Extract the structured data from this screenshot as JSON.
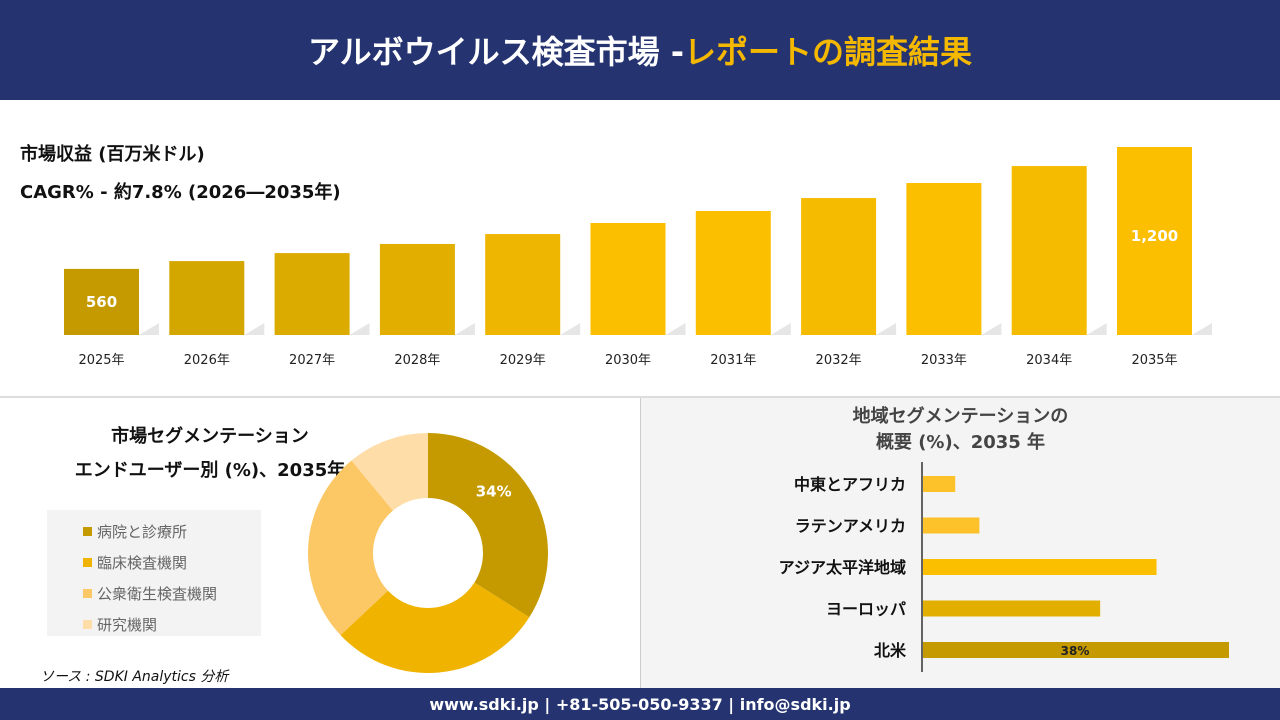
{
  "header": {
    "title_main": "アルボウイルス検査市場 -",
    "title_highlight": "レポートの調査結果"
  },
  "revenue": {
    "label": "市場収益 (百万米ドル)",
    "cagr": "CAGR% - 約7.8% (2026―2035年)"
  },
  "chart_data": [
    {
      "type": "bar",
      "categories": [
        "2025年",
        "2026年",
        "2027年",
        "2028年",
        "2029年",
        "2030年",
        "2031年",
        "2032年",
        "2033年",
        "2034年",
        "2035年"
      ],
      "values": [
        560,
        601,
        643,
        691,
        743,
        801,
        864,
        932,
        1011,
        1100,
        1200
      ],
      "data_labels": {
        "2025年": "560",
        "2035年": "1,200"
      },
      "colors": [
        "#c49a00",
        "#d4a600",
        "#dcab00",
        "#e2ae00",
        "#eeb600",
        "#fbbf00",
        "#fbbf00",
        "#f5bb00",
        "#fbbf00",
        "#f5bb00",
        "#fbbf00"
      ]
    },
    {
      "type": "pie",
      "title": "市場セグメンテーション エンドユーザー別 (%)、2035年",
      "donut": true,
      "labels": [
        "病院と診療所",
        "臨床検査機関",
        "公衆衛生検査機関",
        "研究機関"
      ],
      "values": [
        34,
        29,
        26,
        11
      ],
      "data_labels": [
        "34%",
        "",
        "",
        ""
      ],
      "colors": [
        "#c49a00",
        "#efb300",
        "#fcc765",
        "#fedda8"
      ]
    },
    {
      "type": "bar",
      "orientation": "horizontal",
      "title": "地域セグメンテーションの 概要 (%)、2035 年",
      "categories": [
        "中東とアフリカ",
        "ラテンアメリカ",
        "アジア太平洋地域",
        "ヨーロッパ",
        "北米"
      ],
      "values": [
        4,
        7,
        29,
        22,
        38
      ],
      "data_labels": [
        "",
        "",
        "",
        "",
        "38%"
      ],
      "colors": [
        "#fdc22a",
        "#fdc22a",
        "#fbbf00",
        "#e2ae00",
        "#c49a00"
      ]
    }
  ],
  "segment": {
    "title_line1": "市場セグメンテーション",
    "title_line2": "エンドユーザー別 (%)、2035年"
  },
  "region": {
    "title_line1": "地域セグメンテーションの",
    "title_line2": "概要 (%)、2035 年"
  },
  "source": "ソース : SDKI Analytics 分析",
  "footer": "www.sdki.jp | +81-505-050-9337 | info@sdki.jp"
}
